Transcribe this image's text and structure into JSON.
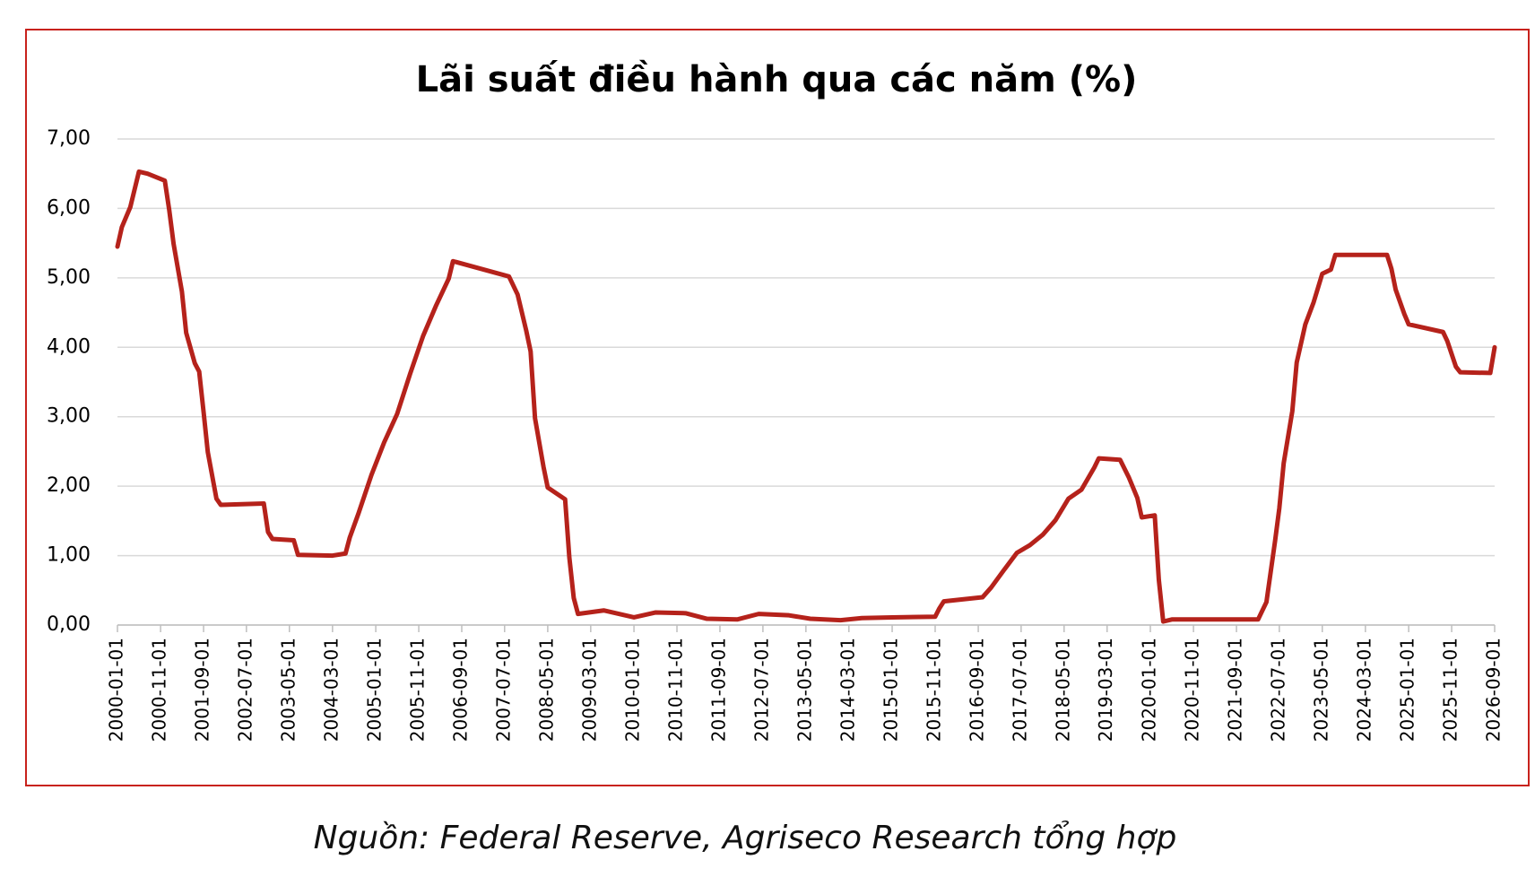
{
  "chart_data": {
    "type": "line",
    "title": "Lãi suất điều hành qua các năm (%)",
    "source": "Nguồn: Federal Reserve, Agriseco Research tổng hợp",
    "color": "#b5221b",
    "grid": true,
    "x": [
      "2000-01-01",
      "2000-02-01",
      "2000-04-01",
      "2000-06-01",
      "2000-08-01",
      "2000-12-01",
      "2001-01-01",
      "2001-02-01",
      "2001-04-01",
      "2001-05-01",
      "2001-07-01",
      "2001-08-01",
      "2001-09-01",
      "2001-10-01",
      "2001-12-01",
      "2002-01-01",
      "2002-11-01",
      "2002-12-01",
      "2003-01-01",
      "2003-06-01",
      "2003-07-01",
      "2004-03-01",
      "2004-06-01",
      "2004-07-01",
      "2004-09-01",
      "2004-12-01",
      "2005-03-01",
      "2005-06-01",
      "2005-09-01",
      "2005-12-01",
      "2006-03-01",
      "2006-06-01",
      "2006-07-01",
      "2007-08-01",
      "2007-10-01",
      "2007-12-01",
      "2008-01-01",
      "2008-02-01",
      "2008-04-01",
      "2008-05-01",
      "2008-09-01",
      "2008-10-01",
      "2008-11-01",
      "2008-12-01",
      "2009-06-01",
      "2010-01-01",
      "2010-06-01",
      "2011-01-01",
      "2011-06-01",
      "2012-01-01",
      "2012-06-01",
      "2013-01-01",
      "2013-06-01",
      "2014-01-01",
      "2014-06-01",
      "2015-01-01",
      "2015-11-01",
      "2015-12-01",
      "2016-01-01",
      "2016-10-01",
      "2016-12-01",
      "2017-03-01",
      "2017-06-01",
      "2017-09-01",
      "2017-12-01",
      "2018-03-01",
      "2018-06-01",
      "2018-09-01",
      "2018-12-01",
      "2019-01-01",
      "2019-06-01",
      "2019-08-01",
      "2019-10-01",
      "2019-11-01",
      "2020-02-01",
      "2020-03-01",
      "2020-04-01",
      "2020-06-01",
      "2021-06-01",
      "2022-02-01",
      "2022-03-01",
      "2022-04-01",
      "2022-06-01",
      "2022-07-01",
      "2022-08-01",
      "2022-10-01",
      "2022-11-01",
      "2023-01-01",
      "2023-03-01",
      "2023-05-01",
      "2023-07-01",
      "2023-08-01",
      "2024-08-01",
      "2024-09-01",
      "2024-10-01",
      "2024-12-01",
      "2025-01-01",
      "2025-09-01",
      "2025-10-01",
      "2025-12-01",
      "2026-01-01",
      "2026-08-01",
      "2026-09-01"
    ],
    "values": [
      5.45,
      5.73,
      6.02,
      6.53,
      6.5,
      6.4,
      5.98,
      5.49,
      4.8,
      4.21,
      3.77,
      3.65,
      3.07,
      2.49,
      1.82,
      1.73,
      1.75,
      1.34,
      1.24,
      1.22,
      1.01,
      1.0,
      1.03,
      1.26,
      1.61,
      2.16,
      2.63,
      3.04,
      3.62,
      4.16,
      4.59,
      4.99,
      5.24,
      5.02,
      4.76,
      4.24,
      3.94,
      2.98,
      2.28,
      1.98,
      1.81,
      0.97,
      0.39,
      0.16,
      0.21,
      0.11,
      0.18,
      0.17,
      0.09,
      0.08,
      0.16,
      0.14,
      0.09,
      0.07,
      0.1,
      0.11,
      0.12,
      0.24,
      0.34,
      0.4,
      0.54,
      0.79,
      1.04,
      1.15,
      1.3,
      1.51,
      1.82,
      1.95,
      2.27,
      2.4,
      2.38,
      2.13,
      1.83,
      1.55,
      1.58,
      0.65,
      0.05,
      0.08,
      0.08,
      0.08,
      0.2,
      0.33,
      1.21,
      1.68,
      2.33,
      3.08,
      3.78,
      4.33,
      4.65,
      5.06,
      5.12,
      5.33,
      5.33,
      5.13,
      4.83,
      4.48,
      4.33,
      4.22,
      4.09,
      3.72,
      3.64,
      3.63,
      4.0
    ],
    "xlim": [
      "2000-01-01",
      "2026-09-01"
    ],
    "xticks": [
      "2000-01-01",
      "2000-11-01",
      "2001-09-01",
      "2002-07-01",
      "2003-05-01",
      "2004-03-01",
      "2005-01-01",
      "2005-11-01",
      "2006-09-01",
      "2007-07-01",
      "2008-05-01",
      "2009-03-01",
      "2010-01-01",
      "2010-11-01",
      "2011-09-01",
      "2012-07-01",
      "2013-05-01",
      "2014-03-01",
      "2015-01-01",
      "2015-11-01",
      "2016-09-01",
      "2017-07-01",
      "2018-05-01",
      "2019-03-01",
      "2020-01-01",
      "2020-11-01",
      "2021-09-01",
      "2022-07-01",
      "2023-05-01",
      "2024-03-01",
      "2025-01-01",
      "2025-11-01",
      "2026-09-01"
    ],
    "ylim": [
      0,
      7
    ],
    "yticks": [
      {
        "value": 0,
        "label": "0,00"
      },
      {
        "value": 1,
        "label": "1,00"
      },
      {
        "value": 2,
        "label": "2,00"
      },
      {
        "value": 3,
        "label": "3,00"
      },
      {
        "value": 4,
        "label": "4,00"
      },
      {
        "value": 5,
        "label": "5,00"
      },
      {
        "value": 6,
        "label": "6,00"
      },
      {
        "value": 7,
        "label": "7,00"
      }
    ]
  }
}
